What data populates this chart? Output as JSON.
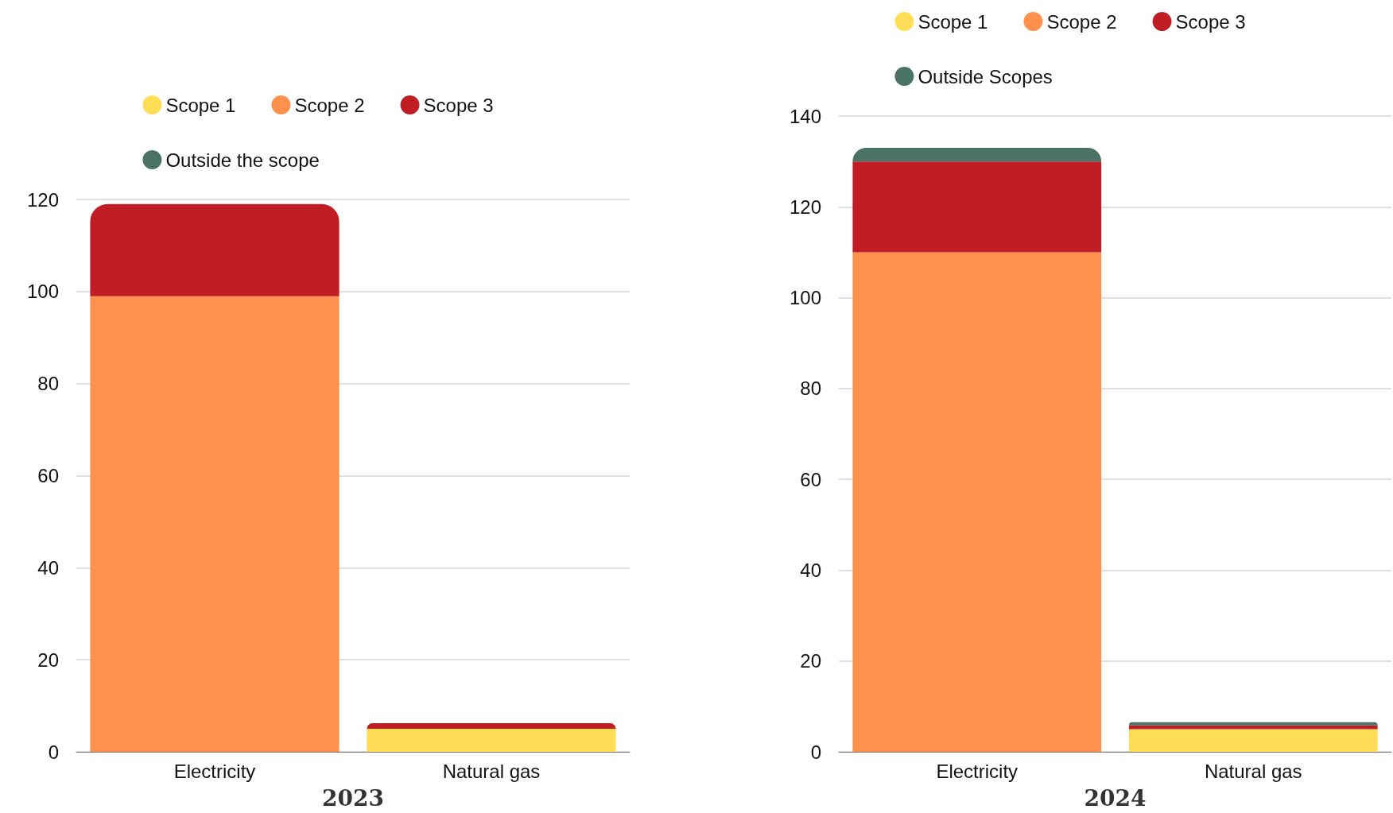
{
  "chart_data": [
    {
      "type": "bar",
      "stacked": true,
      "xlabel": "2023",
      "categories": [
        "Electricity",
        "Natural gas"
      ],
      "series": [
        {
          "name": "Scope 1",
          "color": "#ffdd57",
          "values": [
            0,
            5
          ]
        },
        {
          "name": "Scope 2",
          "color": "#ff914d",
          "values": [
            99,
            0
          ]
        },
        {
          "name": "Scope 3",
          "color": "#c01e24",
          "values": [
            20,
            1.2
          ]
        },
        {
          "name": "Outside the scope",
          "color": "#4a7366",
          "values": [
            0,
            0
          ]
        }
      ],
      "ylim": [
        0,
        120
      ],
      "yticks": [
        0,
        20,
        40,
        60,
        80,
        100,
        120
      ],
      "grid": "y",
      "legend": "top"
    },
    {
      "type": "bar",
      "stacked": true,
      "xlabel": "2024",
      "categories": [
        "Electricity",
        "Natural gas"
      ],
      "series": [
        {
          "name": "Scope 1",
          "color": "#ffdd57",
          "values": [
            0,
            5
          ]
        },
        {
          "name": "Scope 2",
          "color": "#ff914d",
          "values": [
            110,
            0
          ]
        },
        {
          "name": "Scope 3",
          "color": "#c01e24",
          "values": [
            20,
            0.8
          ]
        },
        {
          "name": "Outside Scopes",
          "color": "#4a7366",
          "values": [
            3,
            0.7
          ]
        }
      ],
      "ylim": [
        0,
        140
      ],
      "yticks": [
        0,
        20,
        40,
        60,
        80,
        100,
        120,
        140
      ],
      "grid": "y",
      "legend": "top"
    }
  ]
}
